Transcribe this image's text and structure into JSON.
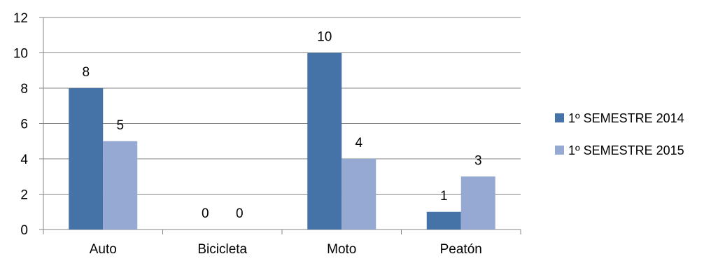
{
  "chart_data": {
    "type": "bar",
    "title": "",
    "xlabel": "",
    "ylabel": "",
    "categories": [
      "Auto",
      "Bicicleta",
      "Moto",
      "Peatón"
    ],
    "series": [
      {
        "name": "1º SEMESTRE 2014",
        "values": [
          8,
          0,
          10,
          1
        ],
        "color": "#4572a7"
      },
      {
        "name": "1º SEMESTRE 2015",
        "values": [
          5,
          0,
          4,
          3
        ],
        "color": "#95a9d3"
      }
    ],
    "ylim": [
      0,
      12
    ],
    "yticks": [
      "0",
      "2",
      "4",
      "6",
      "8",
      "10",
      "12"
    ],
    "grid": true,
    "legend": "right",
    "data_labels": true,
    "colors": {
      "grid": "#868686",
      "axis": "#868686"
    }
  }
}
